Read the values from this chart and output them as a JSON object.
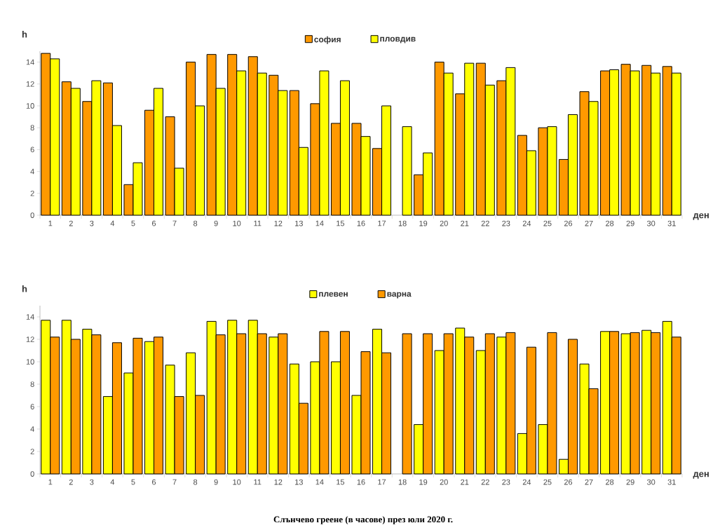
{
  "chart_data": [
    {
      "type": "bar",
      "xlabel": "ден",
      "ylabel": "h",
      "categories": [
        "1",
        "2",
        "3",
        "4",
        "5",
        "6",
        "7",
        "8",
        "9",
        "10",
        "11",
        "12",
        "13",
        "14",
        "15",
        "16",
        "17",
        "18",
        "19",
        "20",
        "21",
        "22",
        "23",
        "24",
        "25",
        "26",
        "27",
        "28",
        "29",
        "30",
        "31"
      ],
      "series": [
        {
          "name": "софия",
          "color": "#ff9900",
          "values": [
            14.8,
            12.2,
            10.4,
            12.1,
            2.8,
            9.6,
            9.0,
            14.0,
            14.7,
            14.7,
            14.5,
            12.8,
            11.4,
            10.2,
            8.4,
            8.4,
            6.1,
            null,
            3.7,
            14.0,
            11.1,
            13.9,
            12.3,
            7.3,
            8.0,
            5.1,
            11.3,
            13.2,
            13.8,
            13.7,
            13.6
          ]
        },
        {
          "name": "пловдив",
          "color": "#ffff00",
          "values": [
            14.3,
            11.6,
            12.3,
            8.2,
            4.8,
            11.6,
            4.3,
            10.0,
            11.6,
            13.2,
            13.0,
            11.4,
            6.2,
            13.2,
            12.3,
            7.2,
            10.0,
            8.1,
            5.7,
            13.0,
            13.9,
            11.9,
            13.5,
            5.9,
            8.1,
            9.2,
            10.4,
            13.3,
            13.2,
            13.0,
            13.0
          ]
        }
      ],
      "ylim": [
        0,
        15
      ],
      "yticks": [
        0,
        2,
        4,
        6,
        8,
        10,
        12,
        14
      ],
      "legend": "top",
      "grid": false
    },
    {
      "type": "bar",
      "xlabel": "ден",
      "ylabel": "h",
      "categories": [
        "1",
        "2",
        "3",
        "4",
        "5",
        "6",
        "7",
        "8",
        "9",
        "10",
        "11",
        "12",
        "13",
        "14",
        "15",
        "16",
        "17",
        "18",
        "19",
        "20",
        "21",
        "22",
        "23",
        "24",
        "25",
        "26",
        "27",
        "28",
        "29",
        "30",
        "31"
      ],
      "series": [
        {
          "name": "плевен",
          "color": "#ffff00",
          "values": [
            13.7,
            13.7,
            12.9,
            6.9,
            9.0,
            11.8,
            9.7,
            10.8,
            13.6,
            13.7,
            13.7,
            12.2,
            9.8,
            10.0,
            10.0,
            7.0,
            12.9,
            null,
            4.4,
            11.0,
            13.0,
            11.0,
            12.2,
            3.6,
            4.4,
            1.3,
            9.8,
            12.7,
            12.5,
            12.8,
            13.6
          ]
        },
        {
          "name": "варна",
          "color": "#ff9900",
          "values": [
            12.2,
            12.0,
            12.4,
            11.7,
            12.1,
            12.2,
            6.9,
            7.0,
            12.4,
            12.5,
            12.5,
            12.5,
            6.3,
            12.7,
            12.7,
            10.9,
            10.8,
            12.5,
            12.5,
            12.5,
            12.2,
            12.5,
            12.6,
            11.3,
            12.6,
            12.0,
            7.6,
            12.7,
            12.6,
            12.6,
            12.2
          ]
        }
      ],
      "ylim": [
        0,
        15
      ],
      "yticks": [
        0,
        2,
        4,
        6,
        8,
        10,
        12,
        14
      ],
      "legend": "top",
      "grid": false,
      "annotations": [
        "Слънчево греене (в часове) през юли 2020 г."
      ]
    }
  ]
}
